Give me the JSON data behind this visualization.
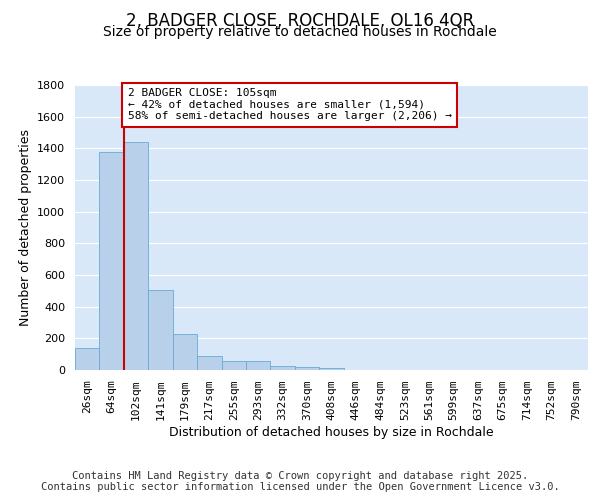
{
  "title1": "2, BADGER CLOSE, ROCHDALE, OL16 4QR",
  "title2": "Size of property relative to detached houses in Rochdale",
  "xlabel": "Distribution of detached houses by size in Rochdale",
  "ylabel": "Number of detached properties",
  "categories": [
    "26sqm",
    "64sqm",
    "102sqm",
    "141sqm",
    "179sqm",
    "217sqm",
    "255sqm",
    "293sqm",
    "332sqm",
    "370sqm",
    "408sqm",
    "446sqm",
    "484sqm",
    "523sqm",
    "561sqm",
    "599sqm",
    "637sqm",
    "675sqm",
    "714sqm",
    "752sqm",
    "790sqm"
  ],
  "values": [
    140,
    1375,
    1440,
    505,
    230,
    90,
    55,
    55,
    25,
    20,
    10,
    2,
    0,
    0,
    0,
    0,
    0,
    0,
    0,
    0,
    0
  ],
  "bar_color": "#b8d0ea",
  "bar_edge_color": "#6aaad4",
  "red_line_color": "#cc0000",
  "red_line_x": 1.5,
  "annotation_text": "2 BADGER CLOSE: 105sqm\n← 42% of detached houses are smaller (1,594)\n58% of semi-detached houses are larger (2,206) →",
  "annotation_box_facecolor": "#ffffff",
  "annotation_box_edgecolor": "#cc0000",
  "ylim": [
    0,
    1800
  ],
  "yticks": [
    0,
    200,
    400,
    600,
    800,
    1000,
    1200,
    1400,
    1600,
    1800
  ],
  "plot_bg_color": "#d8e8f8",
  "figure_bg_color": "#ffffff",
  "grid_color": "#ffffff",
  "footer": "Contains HM Land Registry data © Crown copyright and database right 2025.\nContains public sector information licensed under the Open Government Licence v3.0.",
  "title_fontsize": 12,
  "subtitle_fontsize": 10,
  "axis_label_fontsize": 9,
  "tick_fontsize": 8,
  "annotation_fontsize": 8,
  "footer_fontsize": 7.5
}
